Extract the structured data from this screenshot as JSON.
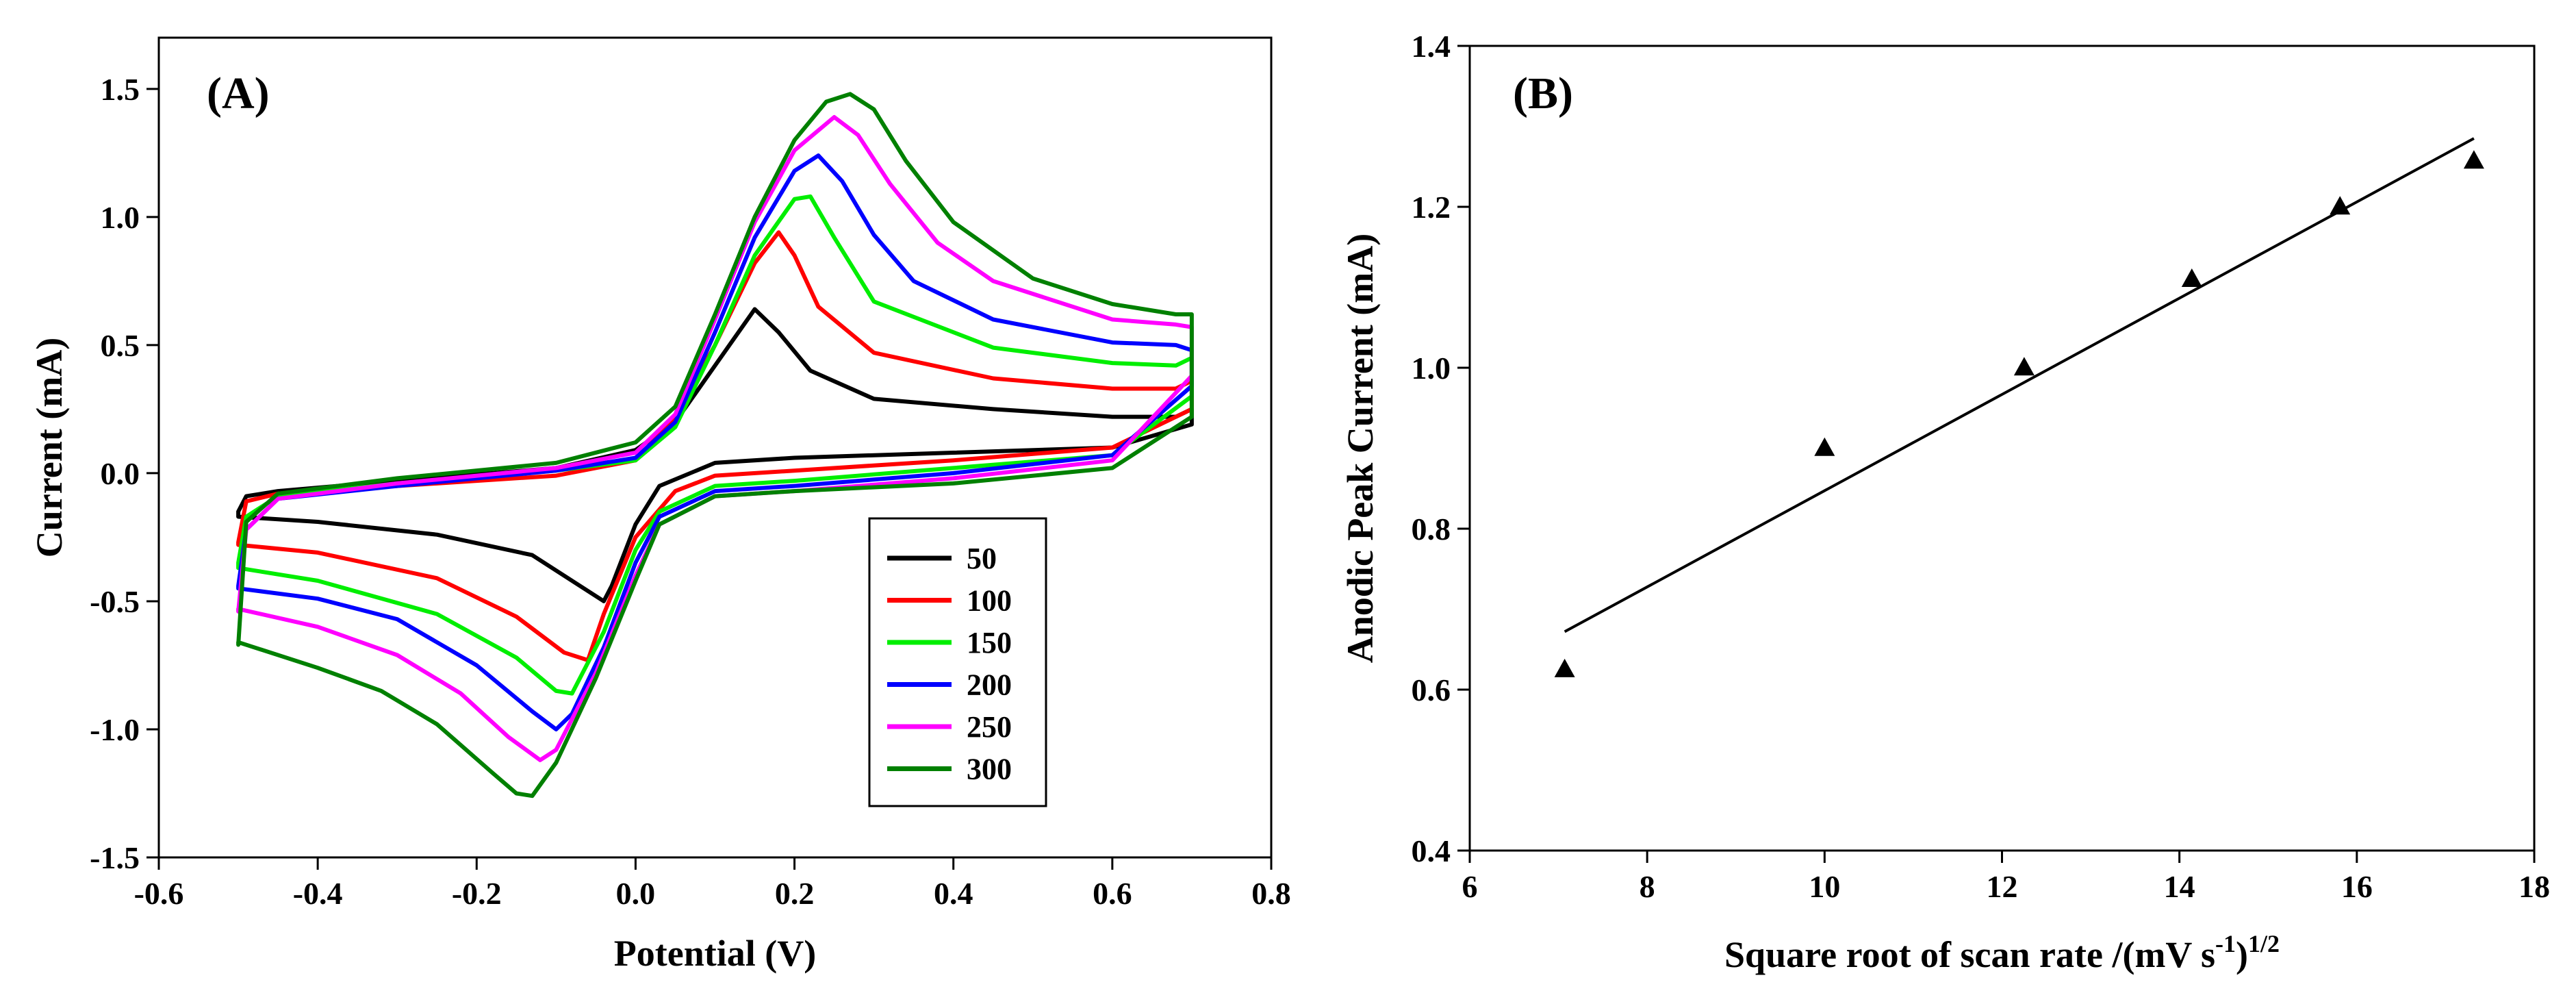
{
  "figure": {
    "background": "#ffffff"
  },
  "chart_data": [
    {
      "id": "A",
      "type": "line",
      "panel_label": "(A)",
      "xlabel": "Potential (V)",
      "ylabel": "Current (mA)",
      "xlim": [
        -0.6,
        0.8
      ],
      "ylim": [
        -1.5,
        1.7
      ],
      "xticks": [
        -0.6,
        -0.4,
        -0.2,
        0.0,
        0.2,
        0.4,
        0.6,
        0.8
      ],
      "xtick_labels": [
        "-0.6",
        "-0.4",
        "-0.2",
        "0.0",
        "0.2",
        "0.4",
        "0.6",
        "0.8"
      ],
      "yticks": [
        -1.5,
        -1.0,
        -0.5,
        0.0,
        0.5,
        1.0,
        1.5
      ],
      "ytick_labels": [
        "-1.5",
        "-1.0",
        "-0.5",
        "0.0",
        "0.5",
        "1.0",
        "1.5"
      ],
      "grid": false,
      "legend_position": "lower-right",
      "series": [
        {
          "name": "50",
          "color": "#000000",
          "forward": [
            [
              -0.5,
              -0.15
            ],
            [
              -0.49,
              -0.09
            ],
            [
              -0.45,
              -0.07
            ],
            [
              -0.3,
              -0.03
            ],
            [
              -0.1,
              0.02
            ],
            [
              0.0,
              0.09
            ],
            [
              0.05,
              0.2
            ],
            [
              0.1,
              0.42
            ],
            [
              0.15,
              0.64
            ],
            [
              0.18,
              0.55
            ],
            [
              0.22,
              0.4
            ],
            [
              0.3,
              0.29
            ],
            [
              0.45,
              0.25
            ],
            [
              0.6,
              0.22
            ],
            [
              0.68,
              0.22
            ],
            [
              0.7,
              0.25
            ]
          ],
          "reverse": [
            [
              0.7,
              0.19
            ],
            [
              0.6,
              0.1
            ],
            [
              0.4,
              0.08
            ],
            [
              0.2,
              0.06
            ],
            [
              0.1,
              0.04
            ],
            [
              0.03,
              -0.05
            ],
            [
              0.0,
              -0.2
            ],
            [
              -0.03,
              -0.44
            ],
            [
              -0.04,
              -0.5
            ],
            [
              -0.07,
              -0.44
            ],
            [
              -0.13,
              -0.32
            ],
            [
              -0.25,
              -0.24
            ],
            [
              -0.4,
              -0.19
            ],
            [
              -0.5,
              -0.17
            ]
          ]
        },
        {
          "name": "100",
          "color": "#ff0000",
          "forward": [
            [
              -0.5,
              -0.27
            ],
            [
              -0.49,
              -0.11
            ],
            [
              -0.45,
              -0.08
            ],
            [
              -0.3,
              -0.05
            ],
            [
              -0.1,
              -0.01
            ],
            [
              0.0,
              0.05
            ],
            [
              0.05,
              0.22
            ],
            [
              0.1,
              0.5
            ],
            [
              0.15,
              0.82
            ],
            [
              0.18,
              0.94
            ],
            [
              0.2,
              0.85
            ],
            [
              0.23,
              0.65
            ],
            [
              0.3,
              0.47
            ],
            [
              0.45,
              0.37
            ],
            [
              0.6,
              0.33
            ],
            [
              0.68,
              0.33
            ],
            [
              0.7,
              0.36
            ]
          ],
          "reverse": [
            [
              0.7,
              0.25
            ],
            [
              0.6,
              0.1
            ],
            [
              0.4,
              0.05
            ],
            [
              0.2,
              0.01
            ],
            [
              0.1,
              -0.01
            ],
            [
              0.05,
              -0.07
            ],
            [
              0.0,
              -0.25
            ],
            [
              -0.04,
              -0.55
            ],
            [
              -0.06,
              -0.73
            ],
            [
              -0.09,
              -0.7
            ],
            [
              -0.15,
              -0.56
            ],
            [
              -0.25,
              -0.41
            ],
            [
              -0.4,
              -0.31
            ],
            [
              -0.5,
              -0.28
            ]
          ]
        },
        {
          "name": "150",
          "color": "#00ee00",
          "forward": [
            [
              -0.5,
              -0.35
            ],
            [
              -0.49,
              -0.17
            ],
            [
              -0.45,
              -0.09
            ],
            [
              -0.3,
              -0.04
            ],
            [
              -0.1,
              0.01
            ],
            [
              0.0,
              0.05
            ],
            [
              0.05,
              0.18
            ],
            [
              0.1,
              0.5
            ],
            [
              0.15,
              0.85
            ],
            [
              0.2,
              1.07
            ],
            [
              0.22,
              1.08
            ],
            [
              0.25,
              0.92
            ],
            [
              0.3,
              0.67
            ],
            [
              0.45,
              0.49
            ],
            [
              0.6,
              0.43
            ],
            [
              0.68,
              0.42
            ],
            [
              0.7,
              0.45
            ]
          ],
          "reverse": [
            [
              0.7,
              0.3
            ],
            [
              0.6,
              0.07
            ],
            [
              0.4,
              0.02
            ],
            [
              0.2,
              -0.03
            ],
            [
              0.1,
              -0.05
            ],
            [
              0.03,
              -0.15
            ],
            [
              0.0,
              -0.3
            ],
            [
              -0.04,
              -0.62
            ],
            [
              -0.08,
              -0.86
            ],
            [
              -0.1,
              -0.85
            ],
            [
              -0.15,
              -0.72
            ],
            [
              -0.25,
              -0.55
            ],
            [
              -0.4,
              -0.42
            ],
            [
              -0.5,
              -0.37
            ]
          ]
        },
        {
          "name": "200",
          "color": "#0000ff",
          "forward": [
            [
              -0.5,
              -0.44
            ],
            [
              -0.49,
              -0.22
            ],
            [
              -0.45,
              -0.1
            ],
            [
              -0.3,
              -0.05
            ],
            [
              -0.1,
              0.01
            ],
            [
              0.0,
              0.06
            ],
            [
              0.05,
              0.2
            ],
            [
              0.1,
              0.55
            ],
            [
              0.15,
              0.92
            ],
            [
              0.2,
              1.18
            ],
            [
              0.23,
              1.24
            ],
            [
              0.26,
              1.14
            ],
            [
              0.3,
              0.93
            ],
            [
              0.35,
              0.75
            ],
            [
              0.45,
              0.6
            ],
            [
              0.6,
              0.51
            ],
            [
              0.68,
              0.5
            ],
            [
              0.7,
              0.48
            ]
          ],
          "reverse": [
            [
              0.7,
              0.34
            ],
            [
              0.6,
              0.07
            ],
            [
              0.4,
              0.0
            ],
            [
              0.2,
              -0.05
            ],
            [
              0.1,
              -0.07
            ],
            [
              0.03,
              -0.17
            ],
            [
              0.0,
              -0.35
            ],
            [
              -0.04,
              -0.68
            ],
            [
              -0.08,
              -0.94
            ],
            [
              -0.1,
              -1.0
            ],
            [
              -0.13,
              -0.93
            ],
            [
              -0.2,
              -0.75
            ],
            [
              -0.3,
              -0.57
            ],
            [
              -0.4,
              -0.49
            ],
            [
              -0.5,
              -0.45
            ]
          ]
        },
        {
          "name": "250",
          "color": "#ff00ff",
          "forward": [
            [
              -0.5,
              -0.54
            ],
            [
              -0.49,
              -0.22
            ],
            [
              -0.45,
              -0.1
            ],
            [
              -0.3,
              -0.04
            ],
            [
              -0.1,
              0.02
            ],
            [
              0.0,
              0.08
            ],
            [
              0.05,
              0.23
            ],
            [
              0.1,
              0.6
            ],
            [
              0.15,
              0.98
            ],
            [
              0.2,
              1.26
            ],
            [
              0.25,
              1.39
            ],
            [
              0.28,
              1.32
            ],
            [
              0.32,
              1.13
            ],
            [
              0.38,
              0.9
            ],
            [
              0.45,
              0.75
            ],
            [
              0.6,
              0.6
            ],
            [
              0.68,
              0.58
            ],
            [
              0.7,
              0.57
            ]
          ],
          "reverse": [
            [
              0.7,
              0.38
            ],
            [
              0.6,
              0.05
            ],
            [
              0.4,
              -0.02
            ],
            [
              0.2,
              -0.07
            ],
            [
              0.1,
              -0.09
            ],
            [
              0.03,
              -0.2
            ],
            [
              0.0,
              -0.4
            ],
            [
              -0.05,
              -0.78
            ],
            [
              -0.1,
              -1.08
            ],
            [
              -0.12,
              -1.12
            ],
            [
              -0.16,
              -1.03
            ],
            [
              -0.22,
              -0.86
            ],
            [
              -0.3,
              -0.71
            ],
            [
              -0.4,
              -0.6
            ],
            [
              -0.5,
              -0.53
            ]
          ]
        },
        {
          "name": "300",
          "color": "#008000",
          "forward": [
            [
              -0.5,
              -0.67
            ],
            [
              -0.49,
              -0.19
            ],
            [
              -0.45,
              -0.08
            ],
            [
              -0.3,
              -0.02
            ],
            [
              -0.1,
              0.04
            ],
            [
              0.0,
              0.12
            ],
            [
              0.05,
              0.26
            ],
            [
              0.1,
              0.62
            ],
            [
              0.15,
              1.0
            ],
            [
              0.2,
              1.3
            ],
            [
              0.24,
              1.45
            ],
            [
              0.27,
              1.48
            ],
            [
              0.3,
              1.42
            ],
            [
              0.34,
              1.22
            ],
            [
              0.4,
              0.98
            ],
            [
              0.5,
              0.76
            ],
            [
              0.6,
              0.66
            ],
            [
              0.68,
              0.62
            ],
            [
              0.7,
              0.62
            ]
          ],
          "reverse": [
            [
              0.7,
              0.22
            ],
            [
              0.6,
              0.02
            ],
            [
              0.4,
              -0.04
            ],
            [
              0.2,
              -0.07
            ],
            [
              0.1,
              -0.09
            ],
            [
              0.03,
              -0.2
            ],
            [
              0.0,
              -0.42
            ],
            [
              -0.05,
              -0.8
            ],
            [
              -0.1,
              -1.13
            ],
            [
              -0.13,
              -1.26
            ],
            [
              -0.15,
              -1.25
            ],
            [
              -0.18,
              -1.17
            ],
            [
              -0.25,
              -0.98
            ],
            [
              -0.32,
              -0.85
            ],
            [
              -0.4,
              -0.76
            ],
            [
              -0.5,
              -0.66
            ]
          ]
        }
      ]
    },
    {
      "id": "B",
      "type": "scatter",
      "panel_label": "(B)",
      "xlabel_main": "Square root of scan rate /(mV s",
      "xlabel_sup1": "-1",
      "xlabel_mid": ")",
      "xlabel_sup2": "1/2",
      "ylabel": "Anodic Peak Current (mA)",
      "xlim": [
        6,
        18
      ],
      "ylim": [
        0.4,
        1.4
      ],
      "xticks": [
        6,
        8,
        10,
        12,
        14,
        16,
        18
      ],
      "xtick_labels": [
        "6",
        "8",
        "10",
        "12",
        "14",
        "16",
        "18"
      ],
      "yticks": [
        0.4,
        0.6,
        0.8,
        1.0,
        1.2,
        1.4
      ],
      "ytick_labels": [
        "0.4",
        "0.6",
        "0.8",
        "1.0",
        "1.2",
        "1.4"
      ],
      "grid": false,
      "marker": "triangle",
      "points": {
        "x": [
          7.07,
          10.0,
          12.25,
          14.14,
          15.81,
          17.32
        ],
        "y": [
          0.625,
          0.9,
          1.0,
          1.11,
          1.2,
          1.257
        ]
      },
      "fit_line": {
        "x": [
          7.07,
          17.32
        ],
        "y": [
          0.672,
          1.285
        ]
      }
    }
  ]
}
